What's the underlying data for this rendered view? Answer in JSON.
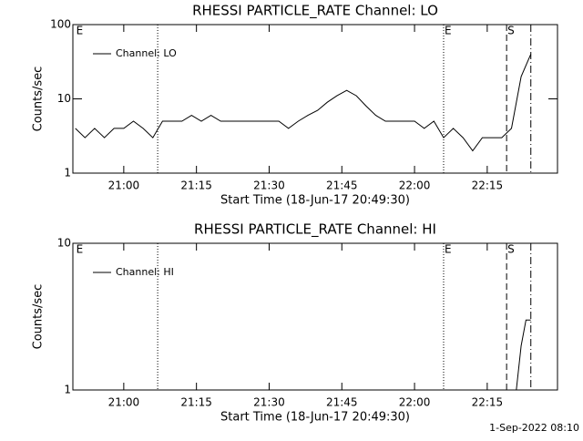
{
  "chart_data": [
    {
      "type": "line",
      "title": "RHESSI PARTICLE_RATE Channel: LO",
      "x_label": "Start Time (18-Jun-17 20:49:30)",
      "y_label": "Counts/sec",
      "log_y": true,
      "xlim": [
        "20:49:30",
        "22:29:30"
      ],
      "ylim": [
        1,
        100
      ],
      "yticks": [
        1,
        10,
        100
      ],
      "xticks": [
        "21:00",
        "21:15",
        "21:30",
        "21:45",
        "22:00",
        "22:15"
      ],
      "legend": "top-left",
      "series": [
        {
          "name": "Channel: LO",
          "color": "#000000",
          "x": [
            "20:50",
            "20:52",
            "20:54",
            "20:56",
            "20:58",
            "21:00",
            "21:02",
            "21:04",
            "21:06",
            "21:08",
            "21:10",
            "21:12",
            "21:14",
            "21:16",
            "21:18",
            "21:20",
            "21:22",
            "21:24",
            "21:26",
            "21:28",
            "21:30",
            "21:32",
            "21:34",
            "21:36",
            "21:38",
            "21:40",
            "21:42",
            "21:44",
            "21:46",
            "21:48",
            "21:50",
            "21:52",
            "21:54",
            "21:56",
            "21:58",
            "22:00",
            "22:02",
            "22:04",
            "22:06",
            "22:08",
            "22:10",
            "22:12",
            "22:14",
            "22:16",
            "22:18",
            "22:20",
            "22:22",
            "22:24"
          ],
          "values": [
            4,
            3,
            4,
            3,
            4,
            4,
            5,
            4,
            3,
            5,
            5,
            5,
            6,
            5,
            6,
            5,
            5,
            5,
            5,
            5,
            5,
            5,
            4,
            5,
            6,
            7,
            9,
            11,
            13,
            11,
            8,
            6,
            5,
            5,
            5,
            5,
            4,
            5,
            3,
            4,
            3,
            2,
            3,
            3,
            3,
            4,
            20,
            40
          ]
        }
      ],
      "annotations": [
        {
          "x": "20:50",
          "label": "E"
        },
        {
          "x": "21:07",
          "style": "dotted"
        },
        {
          "x": "22:06",
          "style": "dotted",
          "label": "E"
        },
        {
          "x": "22:19",
          "style": "dashed",
          "label": "S"
        },
        {
          "x": "22:24",
          "style": "dashdot"
        }
      ]
    },
    {
      "type": "line",
      "title": "RHESSI PARTICLE_RATE Channel: HI",
      "x_label": "Start Time (18-Jun-17 20:49:30)",
      "y_label": "Counts/sec",
      "log_y": true,
      "xlim": [
        "20:49:30",
        "22:29:30"
      ],
      "ylim": [
        1,
        10
      ],
      "yticks": [
        1,
        10
      ],
      "xticks": [
        "21:00",
        "21:15",
        "21:30",
        "21:45",
        "22:00",
        "22:15"
      ],
      "legend": "top-left",
      "series": [
        {
          "name": "Channel: HI",
          "color": "#000000",
          "x": [
            "22:21",
            "22:22",
            "22:23",
            "22:24"
          ],
          "values": [
            1,
            2,
            3,
            3
          ]
        }
      ],
      "annotations": [
        {
          "x": "20:50",
          "label": "E"
        },
        {
          "x": "21:07",
          "style": "dotted"
        },
        {
          "x": "22:06",
          "style": "dotted",
          "label": "E"
        },
        {
          "x": "22:19",
          "style": "dashed",
          "label": "S"
        },
        {
          "x": "22:24",
          "style": "dashdot"
        }
      ]
    }
  ],
  "footer": "1-Sep-2022 08:10"
}
